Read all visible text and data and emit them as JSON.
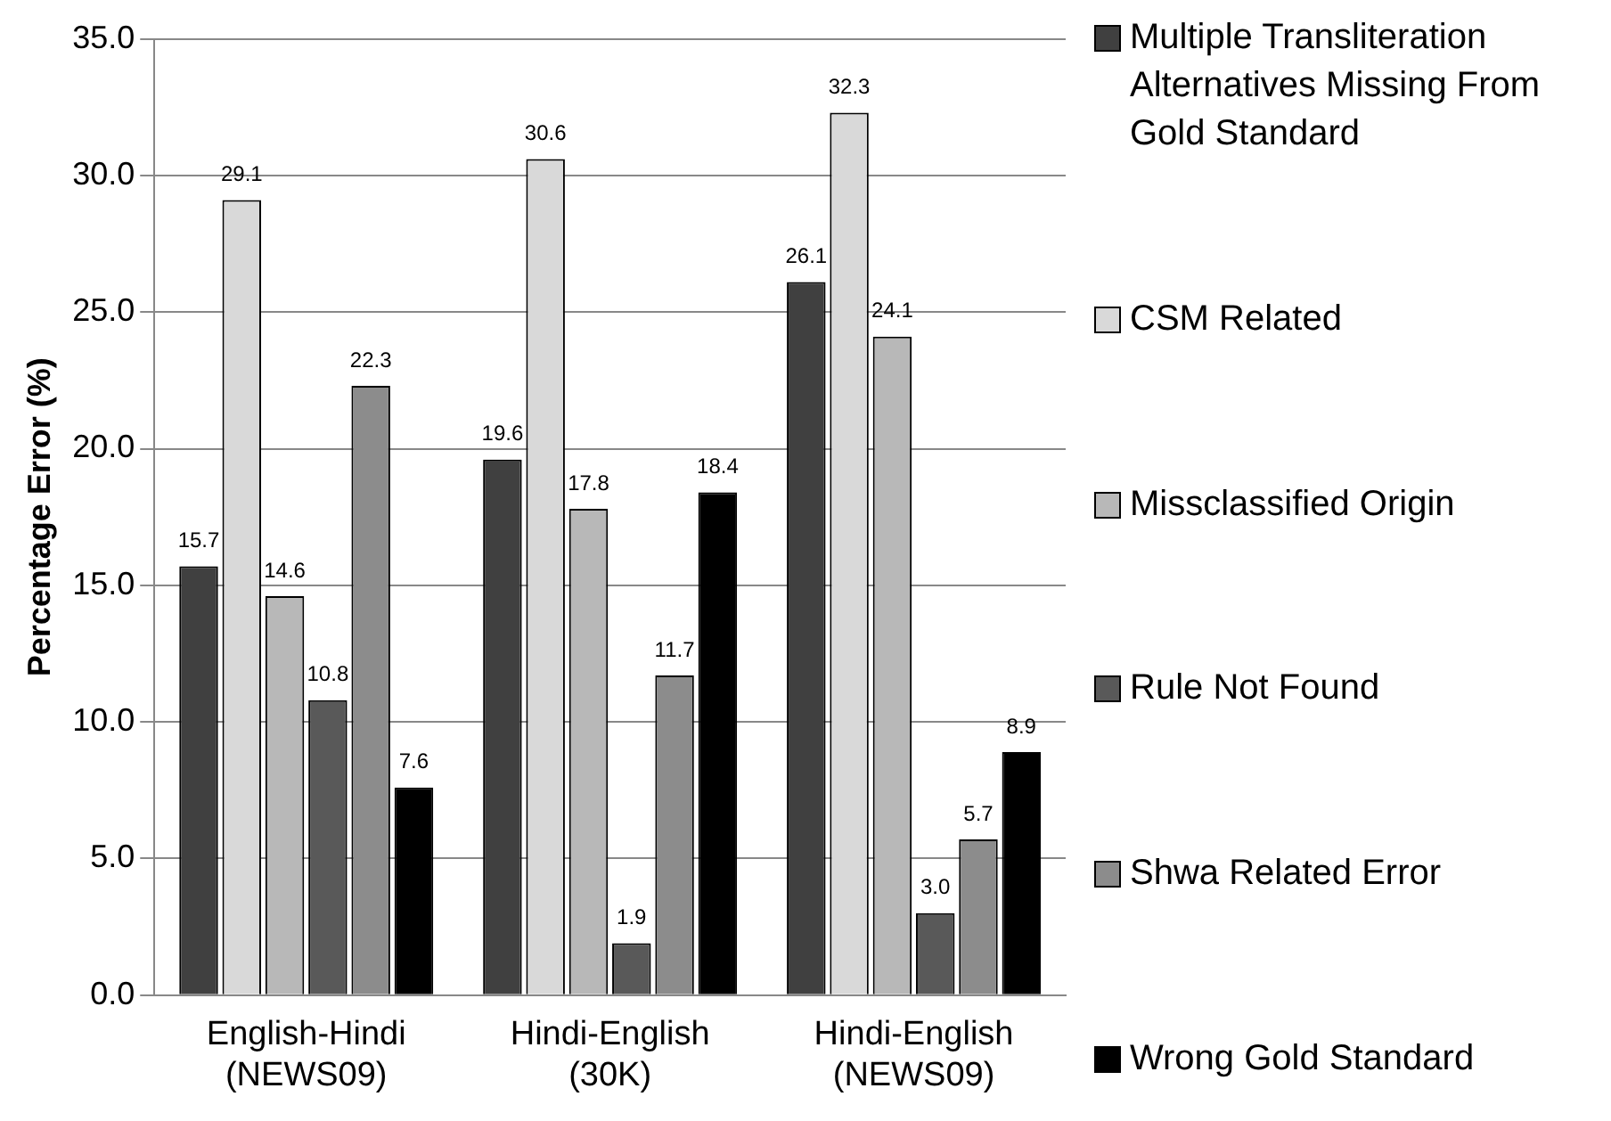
{
  "chart_data": {
    "type": "bar",
    "ylabel": "Percentage Error (%)",
    "categories": [
      "English-Hindi (NEWS09)",
      "Hindi-English (30K)",
      "Hindi-English (NEWS09)"
    ],
    "series": [
      {
        "name": "Multiple Transliteration Alternatives Missing From Gold Standard",
        "color": "#404040",
        "values": [
          15.7,
          19.6,
          26.1
        ],
        "value_labels": [
          "15.7",
          "19.6",
          "26.1"
        ]
      },
      {
        "name": "CSM Related",
        "color": "#d9d9d9",
        "values": [
          29.1,
          30.6,
          32.3
        ],
        "value_labels": [
          "29.1",
          "30.6",
          "32.3"
        ]
      },
      {
        "name": "Missclassified Origin",
        "color": "#b8b8b8",
        "values": [
          14.6,
          17.8,
          24.1
        ],
        "value_labels": [
          "14.6",
          "17.8",
          "24.1"
        ]
      },
      {
        "name": "Rule Not Found",
        "color": "#595959",
        "values": [
          10.8,
          1.9,
          3.0
        ],
        "value_labels": [
          "10.8",
          "1.9",
          "3.0"
        ]
      },
      {
        "name": "Shwa Related Error",
        "color": "#8c8c8c",
        "values": [
          22.3,
          11.7,
          5.7
        ],
        "value_labels": [
          "22.3",
          "11.7",
          "5.7"
        ]
      },
      {
        "name": "Wrong Gold Standard",
        "color": "#000000",
        "values": [
          7.6,
          18.4,
          8.9
        ],
        "value_labels": [
          "7.6",
          "18.4",
          "8.9"
        ]
      }
    ],
    "ylim": [
      0,
      35
    ],
    "yticks": [
      {
        "value": 0,
        "label": "0.0"
      },
      {
        "value": 5,
        "label": "5.0"
      },
      {
        "value": 10,
        "label": "10.0"
      },
      {
        "value": 15,
        "label": "15.0"
      },
      {
        "value": 20,
        "label": "20.0"
      },
      {
        "value": 25,
        "label": "25.0"
      },
      {
        "value": 30,
        "label": "30.0"
      },
      {
        "value": 35,
        "label": "35.0"
      }
    ],
    "grid": "y",
    "legend": "right"
  }
}
